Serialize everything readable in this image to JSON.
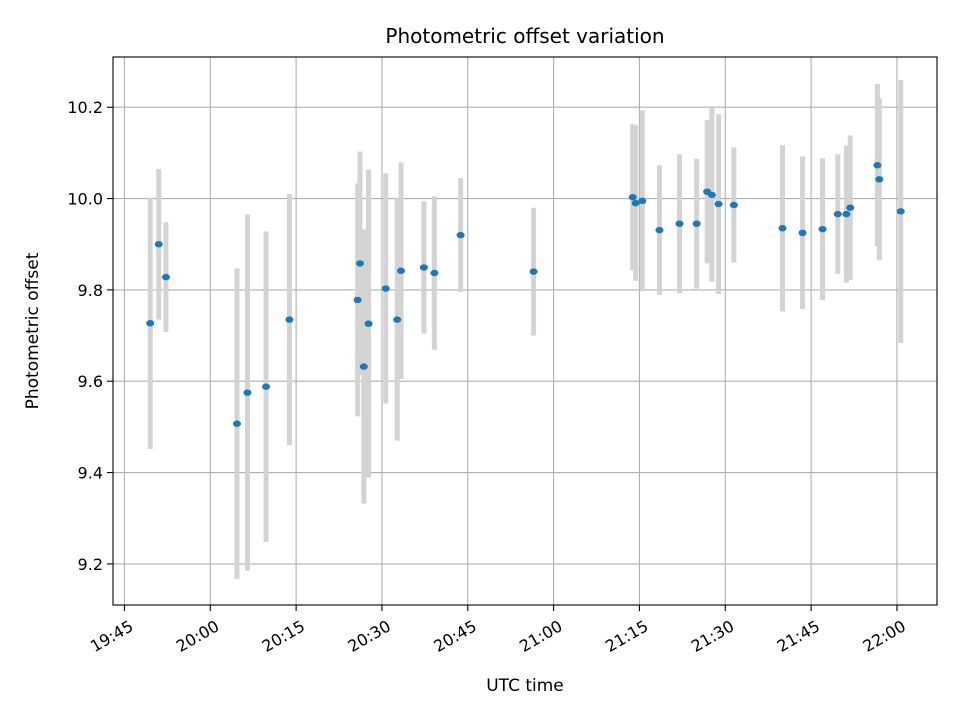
{
  "chart_data": {
    "type": "scatter",
    "title": "Photometric offset variation",
    "xlabel": "UTC time",
    "ylabel": "Photometric offset",
    "grid": true,
    "xlim": [
      "19:43",
      "22:07"
    ],
    "ylim": [
      9.11,
      10.31
    ],
    "x_ticks": [
      "19:45",
      "20:00",
      "20:15",
      "20:30",
      "20:45",
      "21:00",
      "21:15",
      "21:30",
      "21:45",
      "22:00"
    ],
    "y_ticks": [
      9.2,
      9.4,
      9.6,
      9.8,
      10.0,
      10.2
    ],
    "y_tick_labels": [
      "9.2",
      "9.4",
      "9.6",
      "9.8",
      "10.0",
      "10.2"
    ],
    "colors": {
      "point": "#1f77b4",
      "errorbar": "#d3d3d3",
      "grid": "#b0b0b0"
    },
    "series": [
      {
        "points": [
          {
            "x": "19:49:30",
            "y": 9.727,
            "err": 0.275
          },
          {
            "x": "19:51:00",
            "y": 9.9,
            "err": 0.165
          },
          {
            "x": "19:52:15",
            "y": 9.828,
            "err": 0.12
          },
          {
            "x": "20:04:40",
            "y": 9.507,
            "err": 0.34
          },
          {
            "x": "20:06:30",
            "y": 9.575,
            "err": 0.39
          },
          {
            "x": "20:09:45",
            "y": 9.588,
            "err": 0.34
          },
          {
            "x": "20:13:50",
            "y": 9.735,
            "err": 0.275
          },
          {
            "x": "20:25:45",
            "y": 9.778,
            "err": 0.255
          },
          {
            "x": "20:26:10",
            "y": 9.858,
            "err": 0.245
          },
          {
            "x": "20:26:50",
            "y": 9.632,
            "err": 0.3
          },
          {
            "x": "20:27:40",
            "y": 9.726,
            "err": 0.337
          },
          {
            "x": "20:30:40",
            "y": 9.803,
            "err": 0.252
          },
          {
            "x": "20:32:40",
            "y": 9.735,
            "err": 0.265
          },
          {
            "x": "20:33:20",
            "y": 9.842,
            "err": 0.237
          },
          {
            "x": "20:37:20",
            "y": 9.849,
            "err": 0.145
          },
          {
            "x": "20:39:10",
            "y": 9.837,
            "err": 0.168
          },
          {
            "x": "20:43:45",
            "y": 9.92,
            "err": 0.125
          },
          {
            "x": "20:56:30",
            "y": 9.84,
            "err": 0.14
          },
          {
            "x": "21:13:50",
            "y": 10.003,
            "err": 0.16
          },
          {
            "x": "21:14:20",
            "y": 9.99,
            "err": 0.17
          },
          {
            "x": "21:15:30",
            "y": 9.995,
            "err": 0.198
          },
          {
            "x": "21:18:30",
            "y": 9.931,
            "err": 0.142
          },
          {
            "x": "21:22:00",
            "y": 9.945,
            "err": 0.152
          },
          {
            "x": "21:25:00",
            "y": 9.945,
            "err": 0.142
          },
          {
            "x": "21:26:50",
            "y": 10.015,
            "err": 0.157
          },
          {
            "x": "21:27:40",
            "y": 10.008,
            "err": 0.19
          },
          {
            "x": "21:28:50",
            "y": 9.988,
            "err": 0.197
          },
          {
            "x": "21:31:30",
            "y": 9.986,
            "err": 0.126
          },
          {
            "x": "21:40:00",
            "y": 9.935,
            "err": 0.182
          },
          {
            "x": "21:43:30",
            "y": 9.925,
            "err": 0.167
          },
          {
            "x": "21:47:00",
            "y": 9.933,
            "err": 0.155
          },
          {
            "x": "21:49:40",
            "y": 9.966,
            "err": 0.131
          },
          {
            "x": "21:51:10",
            "y": 9.966,
            "err": 0.15
          },
          {
            "x": "21:51:50",
            "y": 9.98,
            "err": 0.158
          },
          {
            "x": "21:56:35",
            "y": 10.073,
            "err": 0.178
          },
          {
            "x": "21:56:55",
            "y": 10.042,
            "err": 0.177
          },
          {
            "x": "22:00:40",
            "y": 9.972,
            "err": 0.288
          }
        ]
      }
    ]
  }
}
